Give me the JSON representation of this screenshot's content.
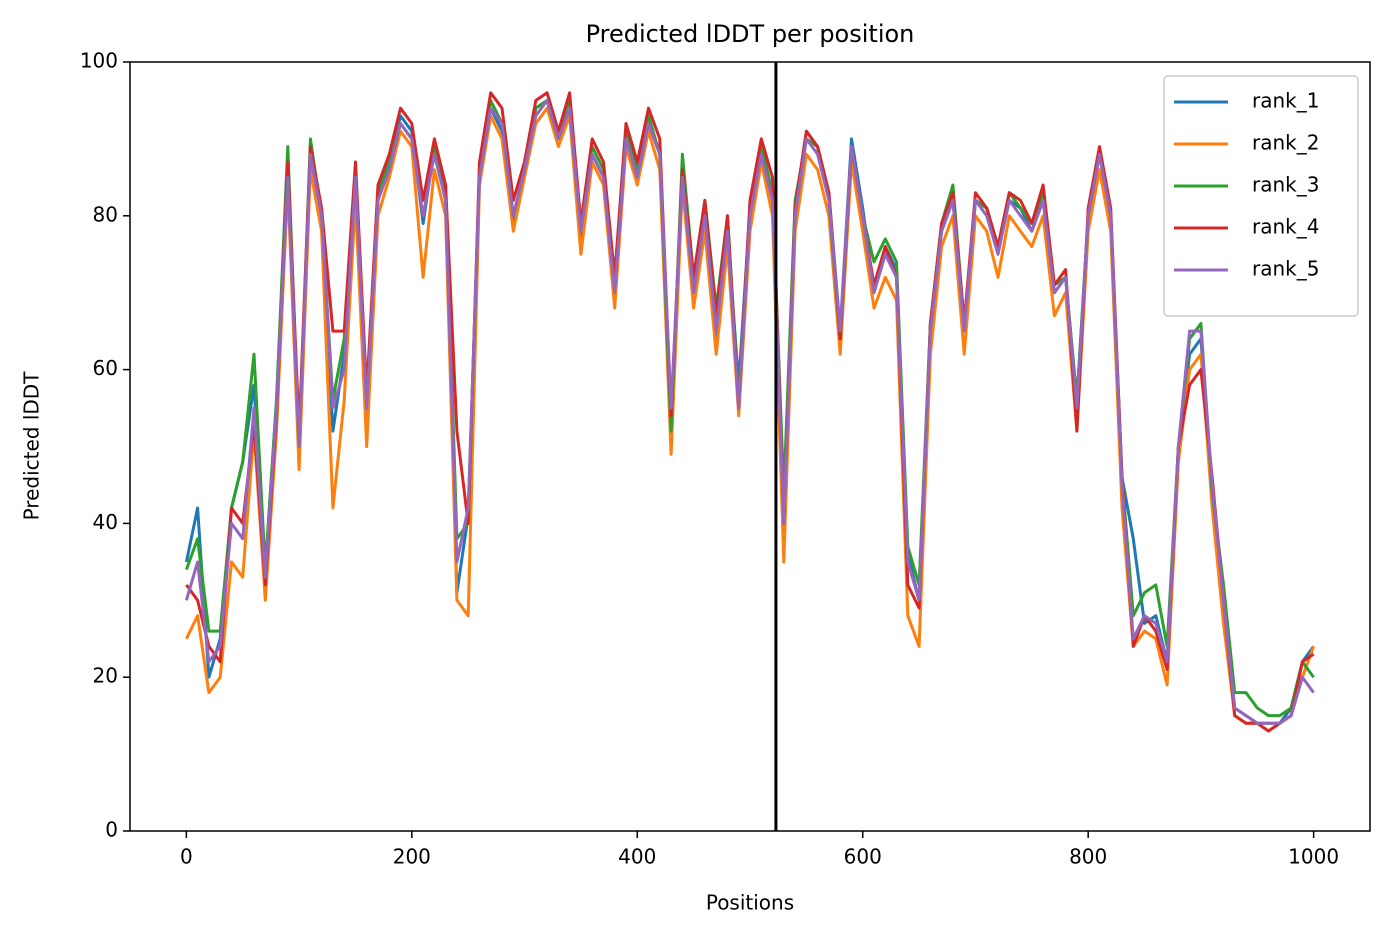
{
  "chart_data": {
    "type": "line",
    "title": "Predicted lDDT per position",
    "xlabel": "Positions",
    "ylabel": "Predicted lDDT",
    "xlim": [
      -50,
      1050
    ],
    "ylim": [
      0,
      100
    ],
    "xticks": [
      0,
      200,
      400,
      600,
      800,
      1000
    ],
    "yticks": [
      0,
      20,
      40,
      60,
      80,
      100
    ],
    "legend": "upper right",
    "vline": 523,
    "vline_color": "#000000",
    "x": [
      0,
      10,
      20,
      30,
      40,
      50,
      60,
      70,
      80,
      90,
      100,
      110,
      120,
      130,
      140,
      150,
      160,
      170,
      180,
      190,
      200,
      210,
      220,
      230,
      240,
      250,
      260,
      270,
      280,
      290,
      300,
      310,
      320,
      330,
      340,
      350,
      360,
      370,
      380,
      390,
      400,
      410,
      420,
      430,
      440,
      450,
      460,
      470,
      480,
      490,
      500,
      510,
      520,
      530,
      540,
      550,
      560,
      570,
      580,
      590,
      600,
      610,
      620,
      630,
      640,
      650,
      660,
      670,
      680,
      690,
      700,
      710,
      720,
      730,
      740,
      750,
      760,
      770,
      780,
      790,
      800,
      810,
      820,
      830,
      840,
      850,
      860,
      870,
      880,
      890,
      900,
      910,
      920,
      930,
      940,
      950,
      960,
      970,
      980,
      990,
      1000
    ],
    "series": [
      {
        "name": "rank_1",
        "color": "#1f77b4",
        "values": [
          35,
          42,
          20,
          25,
          42,
          48,
          58,
          34,
          56,
          86,
          48,
          88,
          80,
          52,
          62,
          85,
          54,
          82,
          87,
          93,
          91,
          79,
          89,
          82,
          31,
          41,
          86,
          94,
          91,
          79,
          86,
          94,
          95,
          90,
          94,
          77,
          88,
          85,
          70,
          90,
          86,
          92,
          88,
          50,
          86,
          71,
          81,
          64,
          78,
          58,
          81,
          89,
          83,
          42,
          81,
          91,
          89,
          83,
          65,
          90,
          81,
          70,
          76,
          73,
          36,
          30,
          66,
          78,
          82,
          66,
          82,
          81,
          76,
          82,
          81,
          78,
          82,
          70,
          72,
          56,
          80,
          88,
          80,
          46,
          38,
          27,
          28,
          22,
          50,
          62,
          64,
          44,
          30,
          16,
          15,
          14,
          14,
          14,
          16,
          22,
          24
        ]
      },
      {
        "name": "rank_2",
        "color": "#ff7f0e",
        "values": [
          25,
          28,
          18,
          20,
          35,
          33,
          52,
          30,
          52,
          84,
          47,
          86,
          78,
          42,
          56,
          82,
          50,
          80,
          85,
          91,
          89,
          72,
          86,
          80,
          30,
          28,
          84,
          93,
          90,
          78,
          85,
          92,
          94,
          89,
          93,
          75,
          87,
          84,
          68,
          89,
          84,
          91,
          86,
          49,
          84,
          68,
          78,
          62,
          76,
          54,
          78,
          87,
          80,
          35,
          78,
          88,
          86,
          80,
          62,
          87,
          78,
          68,
          72,
          69,
          28,
          24,
          62,
          76,
          80,
          62,
          80,
          78,
          72,
          80,
          78,
          76,
          80,
          67,
          70,
          52,
          78,
          86,
          78,
          42,
          24,
          26,
          25,
          19,
          48,
          60,
          62,
          42,
          27,
          15,
          14,
          14,
          13,
          14,
          15,
          20,
          24
        ]
      },
      {
        "name": "rank_3",
        "color": "#2ca02c",
        "values": [
          34,
          38,
          26,
          26,
          42,
          48,
          62,
          34,
          56,
          89,
          50,
          90,
          80,
          56,
          64,
          86,
          56,
          83,
          87,
          92,
          90,
          82,
          89,
          84,
          38,
          40,
          86,
          95,
          92,
          80,
          86,
          94,
          95,
          90,
          95,
          79,
          89,
          86,
          72,
          91,
          86,
          93,
          88,
          52,
          88,
          72,
          82,
          68,
          80,
          56,
          81,
          89,
          83,
          44,
          82,
          90,
          89,
          82,
          64,
          89,
          80,
          74,
          77,
          74,
          37,
          32,
          66,
          79,
          84,
          66,
          82,
          81,
          76,
          83,
          81,
          79,
          83,
          71,
          72,
          56,
          80,
          88,
          80,
          46,
          28,
          31,
          32,
          24,
          50,
          64,
          66,
          44,
          32,
          18,
          18,
          16,
          15,
          15,
          16,
          22,
          20
        ]
      },
      {
        "name": "rank_4",
        "color": "#d62728",
        "values": [
          32,
          30,
          24,
          22,
          42,
          40,
          53,
          32,
          54,
          87,
          52,
          89,
          81,
          65,
          65,
          87,
          57,
          84,
          88,
          94,
          92,
          82,
          90,
          84,
          52,
          40,
          87,
          96,
          94,
          82,
          87,
          95,
          96,
          91,
          96,
          79,
          90,
          87,
          72,
          92,
          87,
          94,
          90,
          54,
          86,
          72,
          82,
          67,
          80,
          55,
          82,
          90,
          85,
          40,
          81,
          91,
          89,
          83,
          64,
          89,
          80,
          71,
          76,
          72,
          32,
          29,
          66,
          79,
          83,
          66,
          83,
          81,
          76,
          83,
          82,
          79,
          84,
          71,
          73,
          52,
          81,
          89,
          81,
          46,
          24,
          28,
          26,
          21,
          50,
          58,
          60,
          46,
          30,
          15,
          14,
          14,
          13,
          14,
          15,
          22,
          23
        ]
      },
      {
        "name": "rank_5",
        "color": "#9467bd",
        "values": [
          30,
          35,
          22,
          24,
          40,
          38,
          55,
          33,
          55,
          85,
          50,
          88,
          80,
          55,
          60,
          85,
          55,
          82,
          86,
          92,
          90,
          80,
          88,
          82,
          35,
          42,
          85,
          94,
          92,
          80,
          86,
          93,
          95,
          90,
          94,
          78,
          88,
          85,
          70,
          90,
          85,
          92,
          88,
          55,
          85,
          70,
          80,
          65,
          78,
          55,
          80,
          88,
          82,
          40,
          80,
          90,
          88,
          82,
          65,
          89,
          80,
          70,
          75,
          72,
          35,
          30,
          65,
          78,
          82,
          65,
          82,
          80,
          75,
          82,
          80,
          78,
          82,
          70,
          72,
          55,
          80,
          88,
          80,
          45,
          25,
          28,
          27,
          22,
          50,
          65,
          65,
          45,
          30,
          16,
          15,
          14,
          14,
          14,
          15,
          20,
          18
        ]
      }
    ]
  }
}
